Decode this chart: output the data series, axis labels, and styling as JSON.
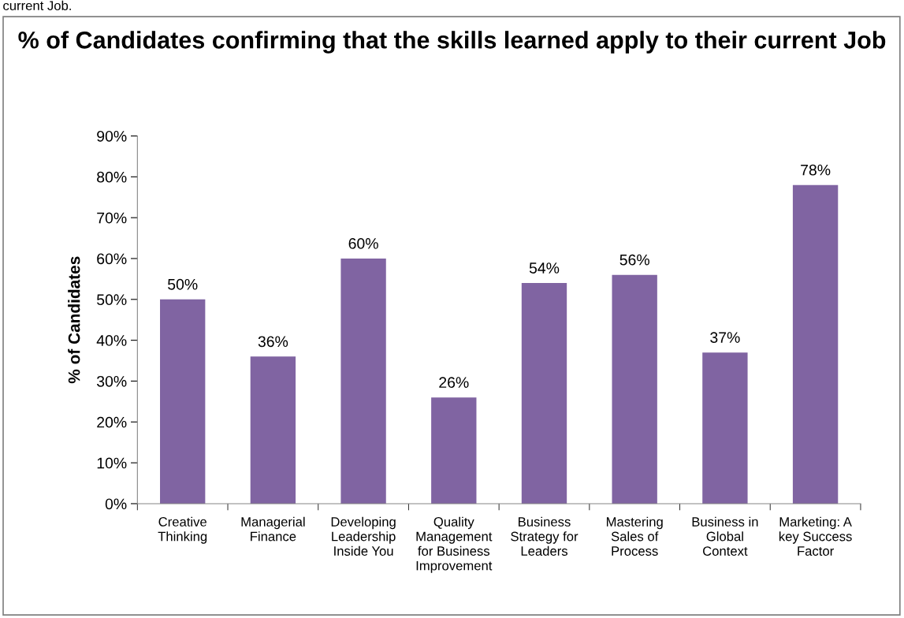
{
  "chart_data": {
    "type": "bar",
    "title": "% of Candidates confirming that the skills learned apply to their current Job",
    "ylabel": "% of Candidates",
    "annotations": [
      "current Job."
    ],
    "categories": [
      "Creative\nThinking",
      "Managerial\nFinance",
      "Developing\nLeadership\nInside You",
      "Quality\nManagement\nfor Business\nImprovement",
      "Business\nStrategy for\nLeaders",
      "Mastering\nSales of\nProcess",
      "Business in\nGlobal\nContext",
      "Marketing: A\nkey Success\nFactor"
    ],
    "values": [
      50,
      36,
      60,
      26,
      54,
      56,
      37,
      78
    ],
    "value_labels": [
      "50%",
      "36%",
      "60%",
      "26%",
      "54%",
      "56%",
      "37%",
      "78%"
    ],
    "color": "#8064a2",
    "ylim": [
      0,
      90
    ],
    "yticks": [
      {
        "value": 0,
        "label": "0%"
      },
      {
        "value": 10,
        "label": "10%"
      },
      {
        "value": 20,
        "label": "20%"
      },
      {
        "value": 30,
        "label": "30%"
      },
      {
        "value": 40,
        "label": "40%"
      },
      {
        "value": 50,
        "label": "50%"
      },
      {
        "value": 60,
        "label": "60%"
      },
      {
        "value": 70,
        "label": "70%"
      },
      {
        "value": 80,
        "label": "80%"
      },
      {
        "value": 90,
        "label": "90%"
      }
    ],
    "grid": false,
    "legend": false
  }
}
